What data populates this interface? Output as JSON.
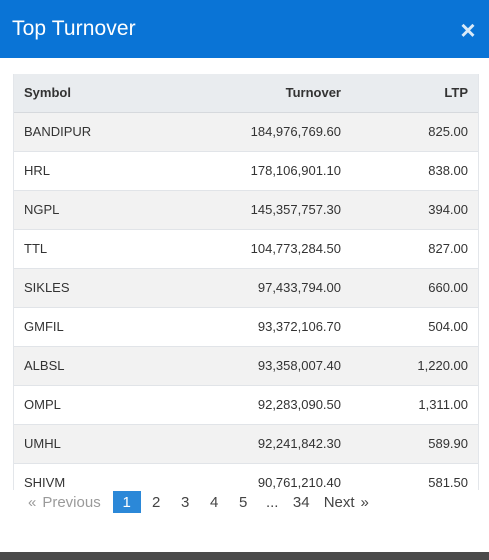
{
  "header": {
    "title": "Top Turnover",
    "close_icon": "×"
  },
  "table": {
    "columns": [
      "Symbol",
      "Turnover",
      "LTP"
    ],
    "rows": [
      [
        "BANDIPUR",
        "184,976,769.60",
        "825.00"
      ],
      [
        "HRL",
        "178,106,901.10",
        "838.00"
      ],
      [
        "NGPL",
        "145,357,757.30",
        "394.00"
      ],
      [
        "TTL",
        "104,773,284.50",
        "827.00"
      ],
      [
        "SIKLES",
        "97,433,794.00",
        "660.00"
      ],
      [
        "GMFIL",
        "93,372,106.70",
        "504.00"
      ],
      [
        "ALBSL",
        "93,358,007.40",
        "1,220.00"
      ],
      [
        "OMPL",
        "92,283,090.50",
        "1,311.00"
      ],
      [
        "UMHL",
        "92,241,842.30",
        "589.90"
      ],
      [
        "SHIVM",
        "90,761,210.40",
        "581.50"
      ]
    ]
  },
  "pagination": {
    "prev_arrow": "«",
    "prev_label": "Previous",
    "pages": [
      "1",
      "2",
      "3",
      "4",
      "5"
    ],
    "active_page": "1",
    "ellipsis": "...",
    "last_page": "34",
    "next_label": "Next",
    "next_arrow": "»"
  },
  "colors": {
    "header_bg": "#0a74d6",
    "active_page_bg": "#2b88d8",
    "table_head_bg": "#e9ecef",
    "row_stripe": "#f2f2f2"
  }
}
